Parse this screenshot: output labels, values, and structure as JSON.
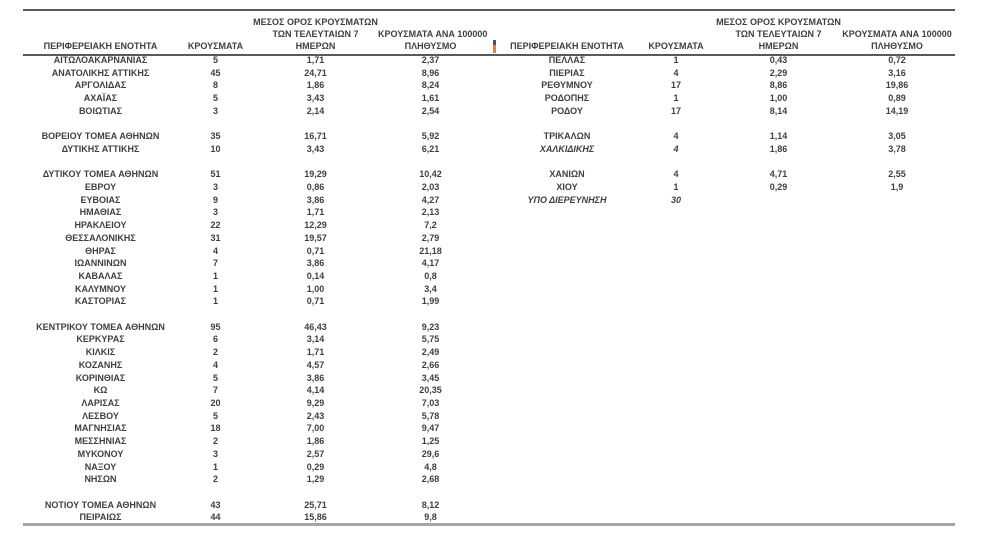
{
  "report": {
    "text_color": "#3f3f3f",
    "rule_dark_color": "#595959",
    "rule_gray_color": "#a6a6a6",
    "marker_colors": [
      "#44546a",
      "#ed7d31"
    ]
  },
  "headers": {
    "region": "ΠΕΡΙΦΕΡΕΙΑΚΗ ΕΝΟΤΗΤΑ",
    "cases": "ΚΡΟΥΣΜΑΤΑ",
    "avg7_line1": "ΜΕΣΟΣ ΟΡΟΣ ΚΡΟΥΣΜΑΤΩΝ",
    "avg7_line2": "ΤΩΝ ΤΕΛΕΥΤΑΙΩΝ 7",
    "avg7_line3": "ΗΜΕΡΩΝ",
    "per100k_line1": "ΚΡΟΥΣΜΑΤΑ ΑΝΑ 100000",
    "per100k_line2": "ΠΛΗΘΥΣΜΟ"
  },
  "left_table": {
    "rows": [
      {
        "region": "ΑΙΤΩΛΟΑΚΑΡΝΑΝΙΑΣ",
        "cases": "5",
        "avg": "1,71",
        "per": "2,37"
      },
      {
        "region": "ΑΝΑΤΟΛΙΚΗΣ ΑΤΤΙΚΗΣ",
        "cases": "45",
        "avg": "24,71",
        "per": "8,96"
      },
      {
        "region": "ΑΡΓΟΛΙΔΑΣ",
        "cases": "8",
        "avg": "1,86",
        "per": "8,24"
      },
      {
        "region": "ΑΧΑΪΑΣ",
        "cases": "5",
        "avg": "3,43",
        "per": "1,61"
      },
      {
        "region": "ΒΟΙΩΤΙΑΣ",
        "cases": "3",
        "avg": "2,14",
        "per": "2,54"
      },
      {
        "blank": true
      },
      {
        "region": "ΒΟΡΕΙΟΥ ΤΟΜΕΑ ΑΘΗΝΩΝ",
        "cases": "35",
        "avg": "16,71",
        "per": "5,92"
      },
      {
        "region": "ΔΥΤΙΚΗΣ ΑΤΤΙΚΗΣ",
        "cases": "10",
        "avg": "3,43",
        "per": "6,21"
      },
      {
        "blank": true
      },
      {
        "region": "ΔΥΤΙΚΟΥ ΤΟΜΕΑ ΑΘΗΝΩΝ",
        "cases": "51",
        "avg": "19,29",
        "per": "10,42"
      },
      {
        "region": "ΕΒΡΟΥ",
        "cases": "3",
        "avg": "0,86",
        "per": "2,03"
      },
      {
        "region": "ΕΥΒΟΙΑΣ",
        "cases": "9",
        "avg": "3,86",
        "per": "4,27"
      },
      {
        "region": "ΗΜΑΘΙΑΣ",
        "cases": "3",
        "avg": "1,71",
        "per": "2,13"
      },
      {
        "region": "ΗΡΑΚΛΕΙΟΥ",
        "cases": "22",
        "avg": "12,29",
        "per": "7,2"
      },
      {
        "region": "ΘΕΣΣΑΛΟΝΙΚΗΣ",
        "cases": "31",
        "avg": "19,57",
        "per": "2,79"
      },
      {
        "region": "ΘΗΡΑΣ",
        "cases": "4",
        "avg": "0,71",
        "per": "21,18"
      },
      {
        "region": "ΙΩΑΝΝΙΝΩΝ",
        "cases": "7",
        "avg": "3,86",
        "per": "4,17"
      },
      {
        "region": "ΚΑΒΑΛΑΣ",
        "cases": "1",
        "avg": "0,14",
        "per": "0,8"
      },
      {
        "region": "ΚΑΛΥΜΝΟΥ",
        "cases": "1",
        "avg": "1,00",
        "per": "3,4"
      },
      {
        "region": "ΚΑΣΤΟΡΙΑΣ",
        "cases": "1",
        "avg": "0,71",
        "per": "1,99"
      },
      {
        "blank": true
      },
      {
        "region": "ΚΕΝΤΡΙΚΟΥ ΤΟΜΕΑ ΑΘΗΝΩΝ",
        "cases": "95",
        "avg": "46,43",
        "per": "9,23"
      },
      {
        "region": "ΚΕΡΚΥΡΑΣ",
        "cases": "6",
        "avg": "3,14",
        "per": "5,75"
      },
      {
        "region": "ΚΙΛΚΙΣ",
        "cases": "2",
        "avg": "1,71",
        "per": "2,49"
      },
      {
        "region": "ΚΟΖΑΝΗΣ",
        "cases": "4",
        "avg": "4,57",
        "per": "2,66"
      },
      {
        "region": "ΚΟΡΙΝΘΙΑΣ",
        "cases": "5",
        "avg": "3,86",
        "per": "3,45"
      },
      {
        "region": "ΚΩ",
        "cases": "7",
        "avg": "4,14",
        "per": "20,35"
      },
      {
        "region": "ΛΑΡΙΣΑΣ",
        "cases": "20",
        "avg": "9,29",
        "per": "7,03"
      },
      {
        "region": "ΛΕΣΒΟΥ",
        "cases": "5",
        "avg": "2,43",
        "per": "5,78"
      },
      {
        "region": "ΜΑΓΝΗΣΙΑΣ",
        "cases": "18",
        "avg": "7,00",
        "per": "9,47"
      },
      {
        "region": "ΜΕΣΣΗΝΙΑΣ",
        "cases": "2",
        "avg": "1,86",
        "per": "1,25"
      },
      {
        "region": "ΜΥΚΟΝΟΥ",
        "cases": "3",
        "avg": "2,57",
        "per": "29,6"
      },
      {
        "region": "ΝΑΞΟΥ",
        "cases": "1",
        "avg": "0,29",
        "per": "4,8"
      },
      {
        "region": "ΝΗΣΩΝ",
        "cases": "2",
        "avg": "1,29",
        "per": "2,68"
      },
      {
        "blank": true
      },
      {
        "region": "ΝΟΤΙΟΥ ΤΟΜΕΑ ΑΘΗΝΩΝ",
        "cases": "43",
        "avg": "25,71",
        "per": "8,12"
      },
      {
        "region": "ΠΕΙΡΑΙΩΣ",
        "cases": "44",
        "avg": "15,86",
        "per": "9,8"
      }
    ]
  },
  "right_table": {
    "rows": [
      {
        "region": "ΠΕΛΛΑΣ",
        "cases": "1",
        "avg": "0,43",
        "per": "0,72"
      },
      {
        "region": "ΠΙΕΡΙΑΣ",
        "cases": "4",
        "avg": "2,29",
        "per": "3,16"
      },
      {
        "region": "ΡΕΘΥΜΝΟΥ",
        "cases": "17",
        "avg": "8,86",
        "per": "19,86"
      },
      {
        "region": "ΡΟΔΟΠΗΣ",
        "cases": "1",
        "avg": "1,00",
        "per": "0,89"
      },
      {
        "region": "ΡΟΔΟΥ",
        "cases": "17",
        "avg": "8,14",
        "per": "14,19"
      },
      {
        "blank": true
      },
      {
        "region": "ΤΡΙΚΑΛΩΝ",
        "cases": "4",
        "avg": "1,14",
        "per": "3,05"
      },
      {
        "region": "ΧΑΛΚΙΔΙΚΗΣ",
        "cases": "4",
        "avg": "1,86",
        "per": "3,78",
        "italic": true
      },
      {
        "blank": true
      },
      {
        "region": "ΧΑΝΙΩΝ",
        "cases": "4",
        "avg": "4,71",
        "per": "2,55"
      },
      {
        "region": "ΧΙΟΥ",
        "cases": "1",
        "avg": "0,29",
        "per": "1,9"
      },
      {
        "region": "ΥΠΟ ΔΙΕΡΕΥΝΗΣΗ",
        "cases": "30",
        "avg": "",
        "per": "",
        "italic": true
      }
    ]
  }
}
